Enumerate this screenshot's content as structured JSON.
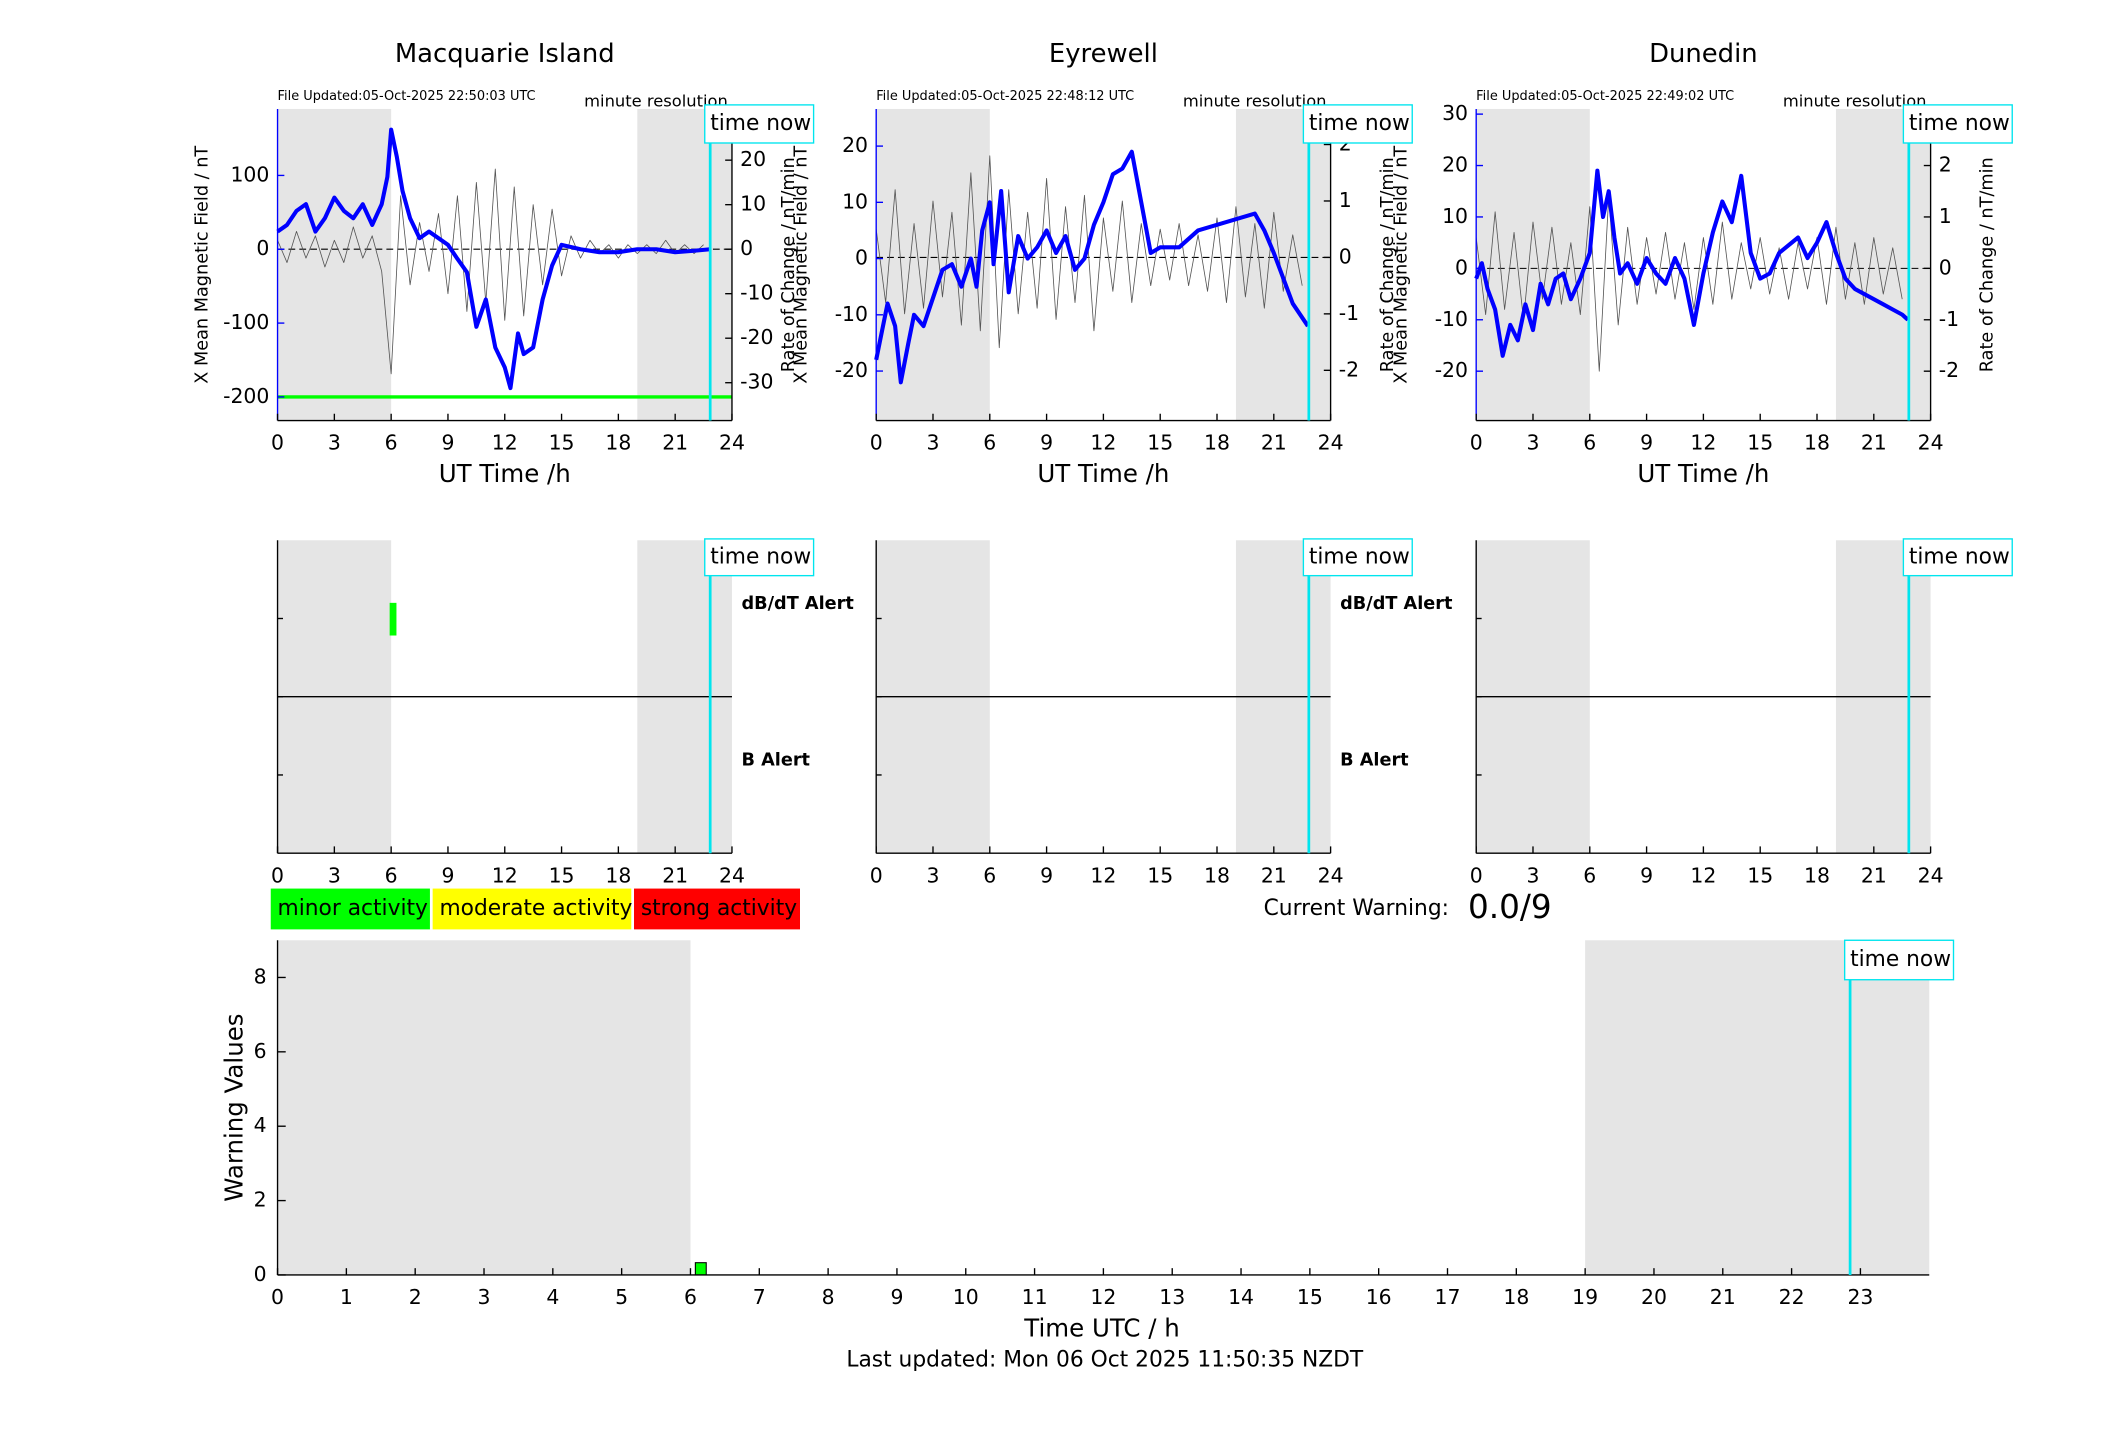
{
  "chart_data": [
    {
      "type": "line",
      "title": "Macquarie Island",
      "file_updated": "File Updated:05-Oct-2025 22:50:03 UTC",
      "resolution": "minute resolution",
      "xlabel": "UT Time /h",
      "ylabel": "X Mean Magnetic Field / nT",
      "y2label": "Rate of Change / nT/min",
      "xlim": [
        0,
        24
      ],
      "xticks": [
        0,
        3,
        6,
        9,
        12,
        15,
        18,
        21,
        24
      ],
      "ylim": [
        -232,
        190
      ],
      "yticks": [
        -200,
        -100,
        0,
        100
      ],
      "y2lim": [
        -38.5,
        31.5
      ],
      "y2ticks": [
        -30,
        -20,
        -10,
        0,
        10,
        20,
        30
      ],
      "night_spans": [
        [
          0,
          6
        ],
        [
          19,
          24
        ]
      ],
      "time_now": 22.85,
      "time_now_label": "time now",
      "threshold": -200,
      "threshold_color": "#00ff00",
      "series": [
        {
          "color": "#0000ff",
          "x": [
            0,
            0.5,
            1,
            1.5,
            2,
            2.5,
            3,
            3.5,
            4,
            4.5,
            5,
            5.5,
            5.8,
            6,
            6.3,
            6.6,
            7,
            7.5,
            8,
            8.5,
            9,
            9.5,
            10,
            10.5,
            11,
            11.5,
            12,
            12.3,
            12.7,
            13,
            13.5,
            14,
            14.5,
            15,
            16,
            17,
            18,
            19,
            20,
            21,
            22,
            22.85
          ],
          "values": [
            24,
            33,
            52,
            61,
            24,
            42,
            70,
            52,
            42,
            61,
            33,
            61,
            98,
            162,
            125,
            79,
            42,
            15,
            24,
            15,
            6,
            -13,
            -31,
            -105,
            -68,
            -133,
            -160,
            -188,
            -114,
            -142,
            -133,
            -68,
            -22,
            6,
            0,
            -4,
            -4,
            0,
            0,
            -4,
            -2,
            0
          ]
        },
        {
          "color": "#555555",
          "axis": "y2",
          "x": [
            0,
            0.5,
            1,
            1.5,
            2,
            2.5,
            3,
            3.5,
            4,
            4.5,
            5,
            5.5,
            6,
            6.5,
            7,
            7.5,
            8,
            8.5,
            9,
            9.5,
            10,
            10.5,
            11,
            11.5,
            12,
            12.5,
            13,
            13.5,
            14,
            14.5,
            15,
            15.5,
            16,
            16.5,
            17,
            17.5,
            18,
            18.5,
            19,
            19.5,
            20,
            20.5,
            21,
            21.5,
            22,
            22.5
          ],
          "values": [
            2,
            -3,
            4,
            -2,
            3,
            -4,
            2,
            -3,
            5,
            -2,
            3,
            -5,
            -28,
            12,
            -8,
            6,
            -5,
            8,
            -10,
            12,
            -14,
            15,
            -12,
            18,
            -16,
            14,
            -15,
            10,
            -8,
            9,
            -6,
            3,
            -2,
            2,
            -1,
            1,
            -2,
            1,
            -1,
            1,
            -1,
            2,
            -1,
            1,
            -1,
            1
          ]
        }
      ]
    },
    {
      "type": "line",
      "title": "Eyrewell",
      "file_updated": "File Updated:05-Oct-2025 22:48:12 UTC",
      "resolution": "minute resolution",
      "xlabel": "UT Time /h",
      "ylabel": "X Mean Magnetic Field / nT",
      "y2label": "Rate of Change / nT/min",
      "xlim": [
        0,
        24
      ],
      "xticks": [
        0,
        3,
        6,
        9,
        12,
        15,
        18,
        21,
        24
      ],
      "ylim": [
        -28.8,
        26.6
      ],
      "yticks": [
        -20,
        -10,
        0,
        10,
        20
      ],
      "y2lim": [
        -2.89,
        2.63
      ],
      "y2ticks": [
        -2,
        -1,
        0,
        1,
        2
      ],
      "night_spans": [
        [
          0,
          6
        ],
        [
          19,
          24
        ]
      ],
      "time_now": 22.85,
      "time_now_label": "time now",
      "series": [
        {
          "color": "#0000ff",
          "x": [
            0,
            0.3,
            0.6,
            1,
            1.3,
            1.7,
            2,
            2.5,
            3,
            3.5,
            4,
            4.5,
            5,
            5.3,
            5.6,
            6,
            6.2,
            6.6,
            7,
            7.5,
            8,
            8.5,
            9,
            9.5,
            10,
            10.5,
            11,
            11.5,
            12,
            12.5,
            13,
            13.5,
            14,
            14.5,
            15,
            16,
            17,
            18,
            19,
            20,
            20.5,
            21,
            22,
            22.8
          ],
          "values": [
            -18,
            -13,
            -8,
            -12,
            -22,
            -15,
            -10,
            -12,
            -7,
            -2,
            -1,
            -5,
            0,
            -5,
            5,
            10,
            -1,
            12,
            -6,
            4,
            0,
            2,
            5,
            1,
            4,
            -2,
            0,
            6,
            10,
            15,
            16,
            19,
            10,
            1,
            2,
            2,
            5,
            6,
            7,
            8,
            5,
            1,
            -8,
            -12
          ]
        },
        {
          "color": "#555555",
          "axis": "y2",
          "x": [
            0,
            0.5,
            1,
            1.5,
            2,
            2.5,
            3,
            3.5,
            4,
            4.5,
            5,
            5.5,
            6,
            6.5,
            7,
            7.5,
            8,
            8.5,
            9,
            9.5,
            10,
            10.5,
            11,
            11.5,
            12,
            12.5,
            13,
            13.5,
            14,
            14.5,
            15,
            15.5,
            16,
            16.5,
            17,
            17.5,
            18,
            18.5,
            19,
            19.5,
            20,
            20.5,
            21,
            21.5,
            22,
            22.5
          ],
          "values": [
            0.5,
            -0.8,
            1.2,
            -1,
            0.6,
            -0.9,
            1,
            -0.7,
            0.8,
            -1.2,
            1.5,
            -1.3,
            1.8,
            -1.6,
            1.2,
            -1,
            0.8,
            -0.9,
            1.4,
            -1.1,
            0.9,
            -0.8,
            1.1,
            -1.3,
            0.7,
            -0.6,
            1,
            -0.8,
            0.6,
            -0.5,
            0.5,
            -0.4,
            0.6,
            -0.5,
            0.4,
            -0.6,
            0.7,
            -0.8,
            0.9,
            -0.7,
            0.6,
            -0.9,
            0.8,
            -0.6,
            0.4,
            -0.5
          ]
        }
      ]
    },
    {
      "type": "line",
      "title": "Dunedin",
      "file_updated": "File Updated:05-Oct-2025 22:49:02 UTC",
      "resolution": "minute resolution",
      "xlabel": "UT Time /h",
      "ylabel": "X Mean Magnetic Field / nT",
      "y2label": "Rate of Change / nT/min",
      "xlim": [
        0,
        24
      ],
      "xticks": [
        0,
        3,
        6,
        9,
        12,
        15,
        18,
        21,
        24
      ],
      "ylim": [
        -29.6,
        31
      ],
      "yticks": [
        -20,
        -10,
        0,
        10,
        20,
        30
      ],
      "y2lim": [
        -2.96,
        3.1
      ],
      "y2ticks": [
        -2,
        -1,
        0,
        1,
        2,
        3
      ],
      "night_spans": [
        [
          0,
          6
        ],
        [
          19,
          24
        ]
      ],
      "time_now": 22.85,
      "time_now_label": "time now",
      "series": [
        {
          "color": "#0000ff",
          "x": [
            0,
            0.3,
            0.6,
            1,
            1.4,
            1.8,
            2.2,
            2.6,
            3,
            3.4,
            3.8,
            4.2,
            4.6,
            5,
            5.5,
            6,
            6.2,
            6.4,
            6.7,
            7,
            7.3,
            7.6,
            8,
            8.5,
            9,
            9.5,
            10,
            10.5,
            11,
            11.5,
            12,
            12.5,
            13,
            13.5,
            14,
            14.5,
            15,
            15.5,
            16,
            17,
            17.5,
            18,
            18.5,
            19,
            19.5,
            20,
            21,
            21.5,
            22,
            22.5,
            22.8
          ],
          "values": [
            -2,
            1,
            -4,
            -8,
            -17,
            -11,
            -14,
            -7,
            -12,
            -3,
            -7,
            -2,
            -1,
            -6,
            -2,
            3,
            11,
            19,
            10,
            15,
            6,
            -1,
            1,
            -3,
            2,
            -1,
            -3,
            2,
            -2,
            -11,
            -1,
            7,
            13,
            9,
            18,
            3,
            -2,
            -1,
            3,
            6,
            2,
            5,
            9,
            3,
            -2,
            -4,
            -6,
            -7,
            -8,
            -9,
            -10
          ]
        },
        {
          "color": "#555555",
          "axis": "y2",
          "x": [
            0,
            0.5,
            1,
            1.5,
            2,
            2.5,
            3,
            3.5,
            4,
            4.5,
            5,
            5.5,
            6,
            6.5,
            7,
            7.5,
            8,
            8.5,
            9,
            9.5,
            10,
            10.5,
            11,
            11.5,
            12,
            12.5,
            13,
            13.5,
            14,
            14.5,
            15,
            15.5,
            16,
            16.5,
            17,
            17.5,
            18,
            18.5,
            19,
            19.5,
            20,
            20.5,
            21,
            21.5,
            22,
            22.5
          ],
          "values": [
            0.6,
            -0.9,
            1.1,
            -0.8,
            0.7,
            -1,
            0.9,
            -0.6,
            0.8,
            -0.7,
            0.5,
            -0.9,
            1.2,
            -2,
            1.4,
            -1.1,
            0.8,
            -0.7,
            0.6,
            -0.5,
            0.7,
            -0.6,
            0.5,
            -0.8,
            0.6,
            -0.7,
            0.9,
            -0.6,
            0.5,
            -0.4,
            0.6,
            -0.5,
            0.4,
            -0.6,
            0.5,
            -0.4,
            0.6,
            -0.7,
            0.8,
            -0.6,
            0.5,
            -0.7,
            0.6,
            -0.5,
            0.4,
            -0.6
          ]
        }
      ]
    },
    {
      "type": "alert",
      "xlim": [
        0,
        24
      ],
      "xticks": [
        0,
        3,
        6,
        9,
        12,
        15,
        18,
        21,
        24
      ],
      "night_spans": [
        [
          0,
          6
        ],
        [
          19,
          24
        ]
      ],
      "time_now": 22.85,
      "time_now_label": "time now",
      "dbdt_label": "dB/dT Alert",
      "b_label": "B Alert",
      "dbdt_alerts": [
        6.1
      ],
      "alert_color": "#00ff00"
    },
    {
      "type": "alert",
      "xlim": [
        0,
        24
      ],
      "xticks": [
        0,
        3,
        6,
        9,
        12,
        15,
        18,
        21,
        24
      ],
      "night_spans": [
        [
          0,
          6
        ],
        [
          19,
          24
        ]
      ],
      "time_now": 22.85,
      "time_now_label": "time now",
      "dbdt_label": "dB/dT Alert",
      "b_label": "B Alert",
      "dbdt_alerts": [],
      "alert_color": "#00ff00"
    },
    {
      "type": "alert",
      "xlim": [
        0,
        24
      ],
      "xticks": [
        0,
        3,
        6,
        9,
        12,
        15,
        18,
        21,
        24
      ],
      "night_spans": [
        [
          0,
          6
        ],
        [
          19,
          24
        ]
      ],
      "time_now": 22.85,
      "time_now_label": "time now",
      "dbdt_alerts": [],
      "alert_color": "#00ff00"
    },
    {
      "type": "bar",
      "xlabel": "Time UTC / h",
      "ylabel": "Warning Values",
      "xlim": [
        0,
        24
      ],
      "xticks": [
        0,
        1,
        2,
        3,
        4,
        5,
        6,
        7,
        8,
        9,
        10,
        11,
        12,
        13,
        14,
        15,
        16,
        17,
        18,
        19,
        20,
        21,
        22,
        23
      ],
      "ylim": [
        0,
        9
      ],
      "yticks": [
        0,
        2,
        4,
        6,
        8
      ],
      "night_spans": [
        [
          0,
          6
        ],
        [
          19,
          24
        ]
      ],
      "time_now": 22.85,
      "time_now_label": "time now",
      "x": [
        6.15
      ],
      "values": [
        0.33
      ],
      "color": "#00ff00"
    }
  ],
  "activity_levels": [
    {
      "label": "minor activity",
      "color": "#00ff00"
    },
    {
      "label": "moderate activity",
      "color": "#ffff00"
    },
    {
      "label": "strong activity",
      "color": "#ff0000"
    }
  ],
  "current_warning_label": "Current Warning:",
  "current_warning": "0.0/9",
  "footer": "Last updated: Mon 06 Oct 2025 11:50:35 NZDT"
}
